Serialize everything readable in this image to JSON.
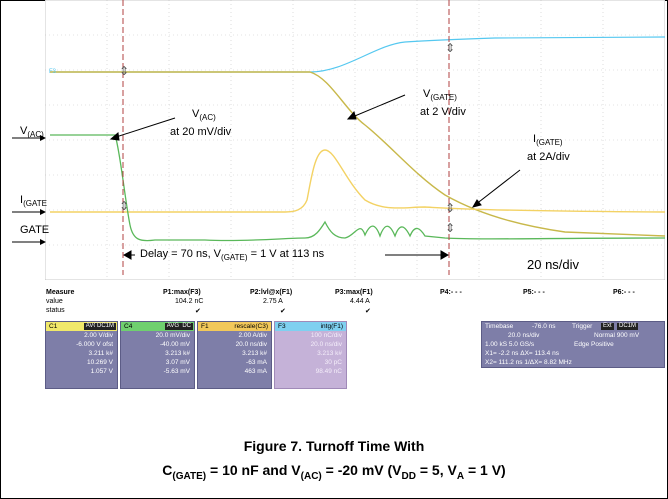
{
  "annotations": {
    "f3_tag": "F3",
    "vac_label_a": "V",
    "vac_label_b": "(AC)",
    "ig_label_a": "I",
    "ig_label_b": "(GATE",
    "gate_label": "GATE",
    "vac_callout_a": "V",
    "vac_callout_b": "(AC)",
    "vac_callout_c": "at 20 mV/div",
    "vgate_callout_a": "V",
    "vgate_callout_b": "(GATE)",
    "vgate_callout_c": "at 2 V/div",
    "igate_callout_a": "I",
    "igate_callout_b": "(GATE)",
    "igate_callout_c": "at 2A/div",
    "delay_a": "Delay = 70 ns,  V",
    "delay_b": "(GATE)",
    "delay_c": " = 1 V at  113 ns",
    "timebase_note": "20 ns/div"
  },
  "measure": {
    "header": [
      "Measure",
      "P1:max(F3)",
      "P2:lvl@x(F1)",
      "P3:max(F1)",
      "P4:- - -",
      "P5:- - -",
      "P6:- - -"
    ],
    "value_label": "value",
    "values": [
      "104.2 nC",
      "2.75 A",
      "4.44 A"
    ],
    "status_label": "status"
  },
  "channels": [
    {
      "name": "C1",
      "badges": [
        "AVG",
        "DC1M"
      ],
      "color": "#f0e86a",
      "lines": [
        "2.00 V/div",
        "-6.000 V ofst",
        "3.211 k#",
        "10.269 V",
        "1.057 V"
      ]
    },
    {
      "name": "C4",
      "badges": [
        "AVG",
        "DC"
      ],
      "color": "#6fd06f",
      "lines": [
        "20.0 mV/div",
        "-40.00 mV",
        "3.213 k#",
        "3.07 mV",
        "-5.63 mV"
      ]
    },
    {
      "name": "F1",
      "badges": [
        "rescale(C3)"
      ],
      "color": "#f2c85a",
      "lines": [
        "2.00 A/div",
        "20.0 ns/div",
        "3.213 k#",
        "-63 mA",
        "463 mA"
      ]
    },
    {
      "name": "F3",
      "badges": [
        "intg(F1)"
      ],
      "color": "#7fd0f0",
      "lines": [
        "100 nC/div",
        "20.0 ns/div",
        "3.213 k#",
        "30 pC",
        "98.49 nC"
      ]
    }
  ],
  "timebase": {
    "label": "Timebase",
    "value": "-76.0 ns",
    "trigger_label": "Trigger",
    "trig_badges": [
      "Ext",
      "DC1M"
    ],
    "line2a": "20.0 ns/div",
    "line2b": "Normal  900 mV",
    "line3a": "1.00 kS    5.0 GS/s",
    "line3b": "Edge    Positive",
    "x1": "X1=    -2.2 ns   ΔX=    113.4 ns",
    "x2": "X2=  111.2 ns  1/ΔX=   8.82 MHz"
  },
  "caption": {
    "line1": "Figure 7. Turnoff Time With",
    "line2a": "C",
    "line2b": "(GATE)",
    "line2c": " = 10 nF and V",
    "line2d": "(AC)",
    "line2e": " = -20 mV (V",
    "line2f": "DD",
    "line2g": " = 5, V",
    "line2h": "A",
    "line2i": " = 1 V)"
  }
}
